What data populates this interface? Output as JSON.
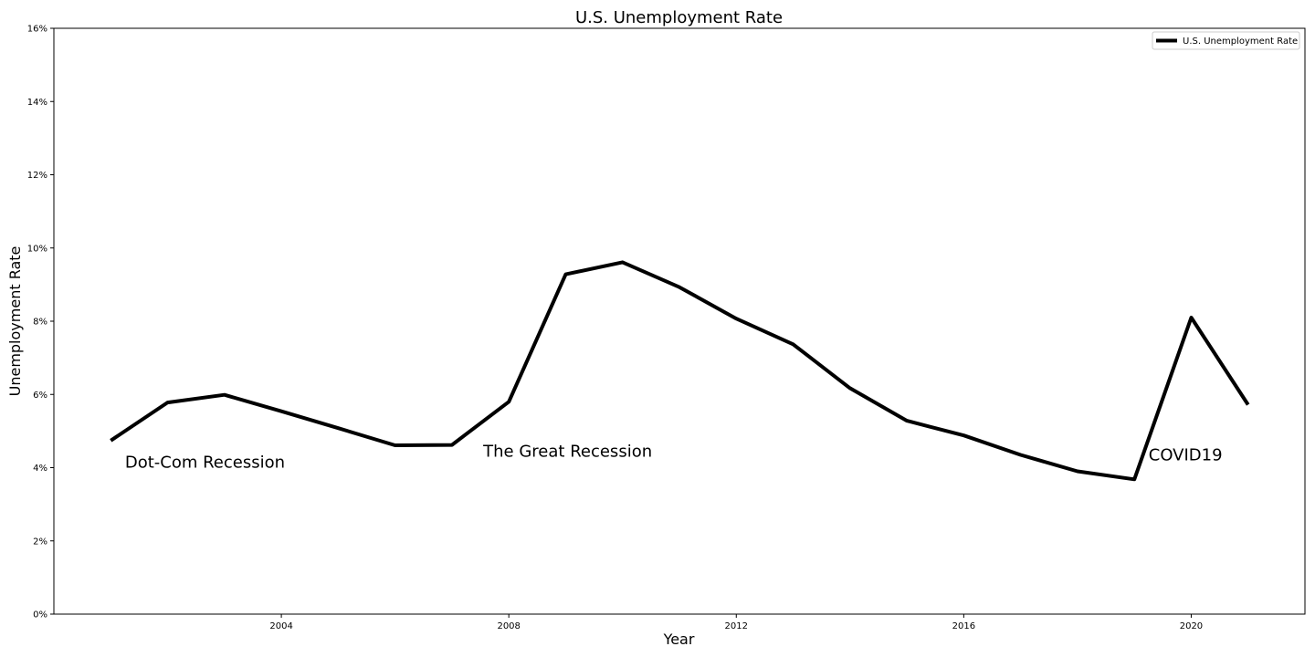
{
  "chart_data": {
    "type": "line",
    "title": "U.S. Unemployment Rate",
    "xlabel": "Year",
    "ylabel": "Unemployment Rate",
    "xlim": [
      2000,
      2022
    ],
    "ylim": [
      0,
      16
    ],
    "x_ticks": [
      2004,
      2008,
      2012,
      2016,
      2020
    ],
    "x_tick_labels": [
      "2004",
      "2008",
      "2012",
      "2016",
      "2020"
    ],
    "y_ticks": [
      0,
      2,
      4,
      6,
      8,
      10,
      12,
      14,
      16
    ],
    "y_tick_labels": [
      "0%",
      "2%",
      "4%",
      "6%",
      "8%",
      "10%",
      "12%",
      "14%",
      "16%"
    ],
    "grid": false,
    "legend_placement": "top-right",
    "series": [
      {
        "name": "U.S. Unemployment Rate",
        "color": "#000000",
        "x": [
          2001,
          2002,
          2003,
          2004,
          2005,
          2006,
          2007,
          2008,
          2009,
          2010,
          2011,
          2012,
          2013,
          2014,
          2015,
          2016,
          2017,
          2018,
          2019,
          2020,
          2021
        ],
        "values": [
          4.74,
          5.78,
          5.99,
          5.54,
          5.08,
          4.61,
          4.62,
          5.8,
          9.28,
          9.61,
          8.93,
          8.07,
          7.37,
          6.17,
          5.28,
          4.88,
          4.35,
          3.9,
          3.68,
          8.1,
          5.72
        ]
      }
    ],
    "annotations": [
      {
        "text": "Dot-Com Recession",
        "x": 2001.25,
        "y": 4.0
      },
      {
        "text": "The Great Recession",
        "x": 2007.55,
        "y": 4.3
      },
      {
        "text": "COVID19",
        "x": 2019.25,
        "y": 4.2
      }
    ]
  }
}
